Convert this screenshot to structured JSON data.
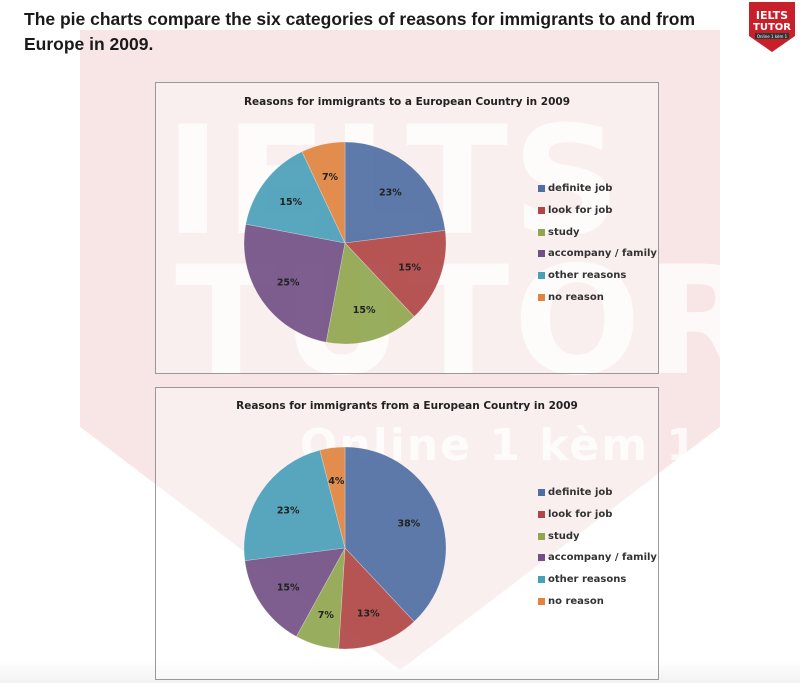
{
  "intro_text": "The pie charts compare the six categories of reasons for immigrants to and from Europe in 2009.",
  "logo": {
    "line1": "IELTS",
    "line2": "TUTOR",
    "line3": "Online 1 kèm 1",
    "color": "#c8202b"
  },
  "watermark": {
    "line1": "IELTS",
    "line2": "TUTOR",
    "line3": "Online 1 kèm 1"
  },
  "colors": {
    "definite_job": "#4f6fa3",
    "look_for_job": "#b04747",
    "study": "#8fa64f",
    "accompany_family": "#725086",
    "other_reasons": "#4aa0b8",
    "no_reason": "#e0843f"
  },
  "chart_data": [
    {
      "type": "pie",
      "title": "Reasons for immigrants to a European Country in 2009",
      "categories": [
        "definite job",
        "look for job",
        "study",
        "accompany / family",
        "other reasons",
        "no reason"
      ],
      "values": [
        23,
        15,
        15,
        25,
        15,
        7
      ],
      "labels": [
        "23%",
        "15%",
        "15%",
        "25%",
        "15%",
        "7%"
      ],
      "unit": "%",
      "legend_position": "right"
    },
    {
      "type": "pie",
      "title": "Reasons for immigrants from a European Country in 2009",
      "categories": [
        "definite job",
        "look for job",
        "study",
        "accompany / family",
        "other reasons",
        "no reason"
      ],
      "values": [
        38,
        13,
        7,
        15,
        23,
        4
      ],
      "labels": [
        "38%",
        "13%",
        "7%",
        "15%",
        "23%",
        "4%"
      ],
      "unit": "%",
      "legend_position": "right"
    }
  ]
}
